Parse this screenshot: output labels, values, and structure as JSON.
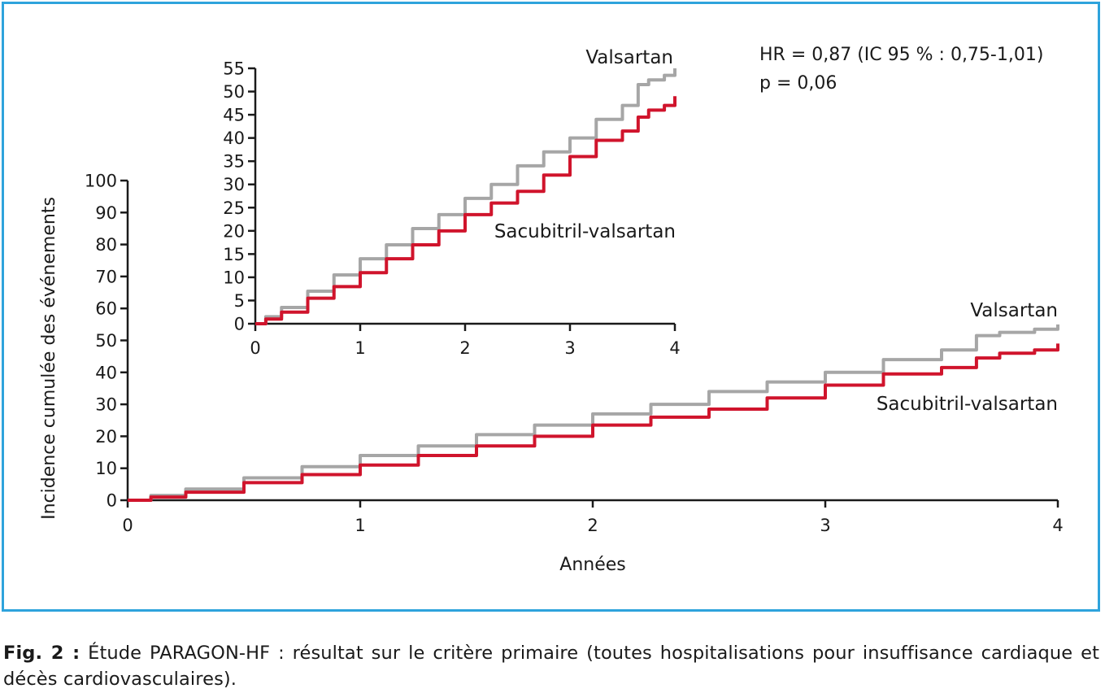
{
  "colors": {
    "valsartan": "#a6a6a6",
    "sacubitril": "#d0142c",
    "frame": "#2ea3dc",
    "axis": "#1a1a1a"
  },
  "stats": {
    "hr": "HR = 0,87 (IC 95 % : 0,75-1,01)",
    "p": "p = 0,06"
  },
  "caption": {
    "label": "Fig. 2 :",
    "text": "Étude PARAGON-HF : résultat sur le critère primaire (toutes hospitalisations pour insuffisance cardiaque et décès cardiovasculaires)."
  },
  "chart_data": [
    {
      "type": "line",
      "id": "main",
      "xlabel": "Années",
      "ylabel": "Incidence cumulée des événements",
      "xlim": [
        0,
        4
      ],
      "ylim": [
        0,
        100
      ],
      "xticks": [
        0,
        1,
        2,
        3,
        4
      ],
      "yticks": [
        0,
        10,
        20,
        30,
        40,
        50,
        60,
        70,
        80,
        90,
        100
      ],
      "grid": false,
      "series": [
        {
          "name": "Valsartan",
          "x": [
            0,
            0.1,
            0.25,
            0.5,
            0.75,
            1.0,
            1.25,
            1.5,
            1.75,
            2.0,
            2.25,
            2.5,
            2.75,
            3.0,
            3.25,
            3.5,
            3.65,
            3.75,
            3.9,
            4.0
          ],
          "y": [
            0,
            1.5,
            3.5,
            7,
            10.5,
            14,
            17,
            20.5,
            23.5,
            27,
            30,
            34,
            37,
            40,
            44,
            47,
            51.5,
            52.5,
            53.5,
            55
          ]
        },
        {
          "name": "Sacubitril-valsartan",
          "x": [
            0,
            0.1,
            0.25,
            0.5,
            0.75,
            1.0,
            1.25,
            1.5,
            1.75,
            2.0,
            2.25,
            2.5,
            2.75,
            3.0,
            3.25,
            3.5,
            3.65,
            3.75,
            3.9,
            4.0
          ],
          "y": [
            0,
            1,
            2.5,
            5.5,
            8,
            11,
            14,
            17,
            20,
            23.5,
            26,
            28.5,
            32,
            36,
            39.5,
            41.5,
            44.5,
            46,
            47,
            49
          ]
        }
      ]
    },
    {
      "type": "line",
      "id": "inset",
      "xlim": [
        0,
        4
      ],
      "ylim": [
        0,
        55
      ],
      "xticks": [
        0,
        1,
        2,
        3,
        4
      ],
      "yticks": [
        0,
        5,
        10,
        15,
        20,
        25,
        30,
        35,
        40,
        45,
        50,
        55
      ],
      "grid": false,
      "series": [
        {
          "name": "Valsartan",
          "x": [
            0,
            0.1,
            0.25,
            0.5,
            0.75,
            1.0,
            1.25,
            1.5,
            1.75,
            2.0,
            2.25,
            2.5,
            2.75,
            3.0,
            3.25,
            3.5,
            3.65,
            3.75,
            3.9,
            4.0
          ],
          "y": [
            0,
            1.5,
            3.5,
            7,
            10.5,
            14,
            17,
            20.5,
            23.5,
            27,
            30,
            34,
            37,
            40,
            44,
            47,
            51.5,
            52.5,
            53.5,
            55
          ]
        },
        {
          "name": "Sacubitril-valsartan",
          "x": [
            0,
            0.1,
            0.25,
            0.5,
            0.75,
            1.0,
            1.25,
            1.5,
            1.75,
            2.0,
            2.25,
            2.5,
            2.75,
            3.0,
            3.25,
            3.5,
            3.65,
            3.75,
            3.9,
            4.0
          ],
          "y": [
            0,
            1,
            2.5,
            5.5,
            8,
            11,
            14,
            17,
            20,
            23.5,
            26,
            28.5,
            32,
            36,
            39.5,
            41.5,
            44.5,
            46,
            47,
            49
          ]
        }
      ]
    }
  ]
}
